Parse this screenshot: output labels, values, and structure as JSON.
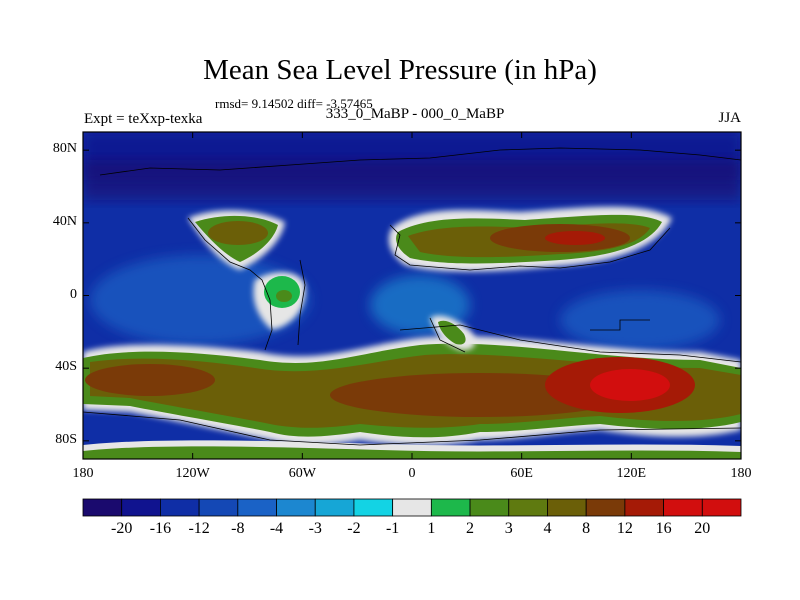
{
  "title": "Mean Sea Level Pressure (in hPa)",
  "subtitle_stats": "rmsd= 9.14502 diff= -3.57465",
  "left_label": "Expt = teXxp-texka",
  "center_label": "333_0_MaBP - 000_0_MaBP",
  "right_label": "JJA",
  "map": {
    "lon_range": [
      -180,
      180
    ],
    "lat_range": [
      -90,
      90
    ],
    "y_ticks": [
      {
        "lat": 80,
        "label": "80N"
      },
      {
        "lat": 40,
        "label": "40N"
      },
      {
        "lat": 0,
        "label": "0"
      },
      {
        "lat": -40,
        "label": "40S"
      },
      {
        "lat": -80,
        "label": "80S"
      }
    ],
    "x_ticks": [
      {
        "lon": -180,
        "label": "180"
      },
      {
        "lon": -120,
        "label": "120W"
      },
      {
        "lon": -60,
        "label": "60W"
      },
      {
        "lon": 0,
        "label": "0"
      },
      {
        "lon": 60,
        "label": "60E"
      },
      {
        "lon": 120,
        "label": "120E"
      },
      {
        "lon": 180,
        "label": "180"
      }
    ]
  },
  "colorbar": {
    "levels": [
      "-20",
      "-16",
      "-12",
      "-8",
      "-4",
      "-3",
      "-2",
      "-1",
      "1",
      "2",
      "3",
      "4",
      "8",
      "12",
      "16",
      "20"
    ],
    "colors": [
      "#1a0a6e",
      "#10138f",
      "#0f2ea6",
      "#1448b5",
      "#1a62c6",
      "#1c87d0",
      "#16a6d6",
      "#13d3e4",
      "#e6e6e6",
      "#1db84b",
      "#4a8a1a",
      "#5f7a10",
      "#6b5f08",
      "#7a3a08",
      "#a51a06",
      "#d20e0e",
      "#d20e0e"
    ]
  },
  "colors": {
    "background": "#ffffff",
    "ocean_base": "#0f2ea6"
  }
}
